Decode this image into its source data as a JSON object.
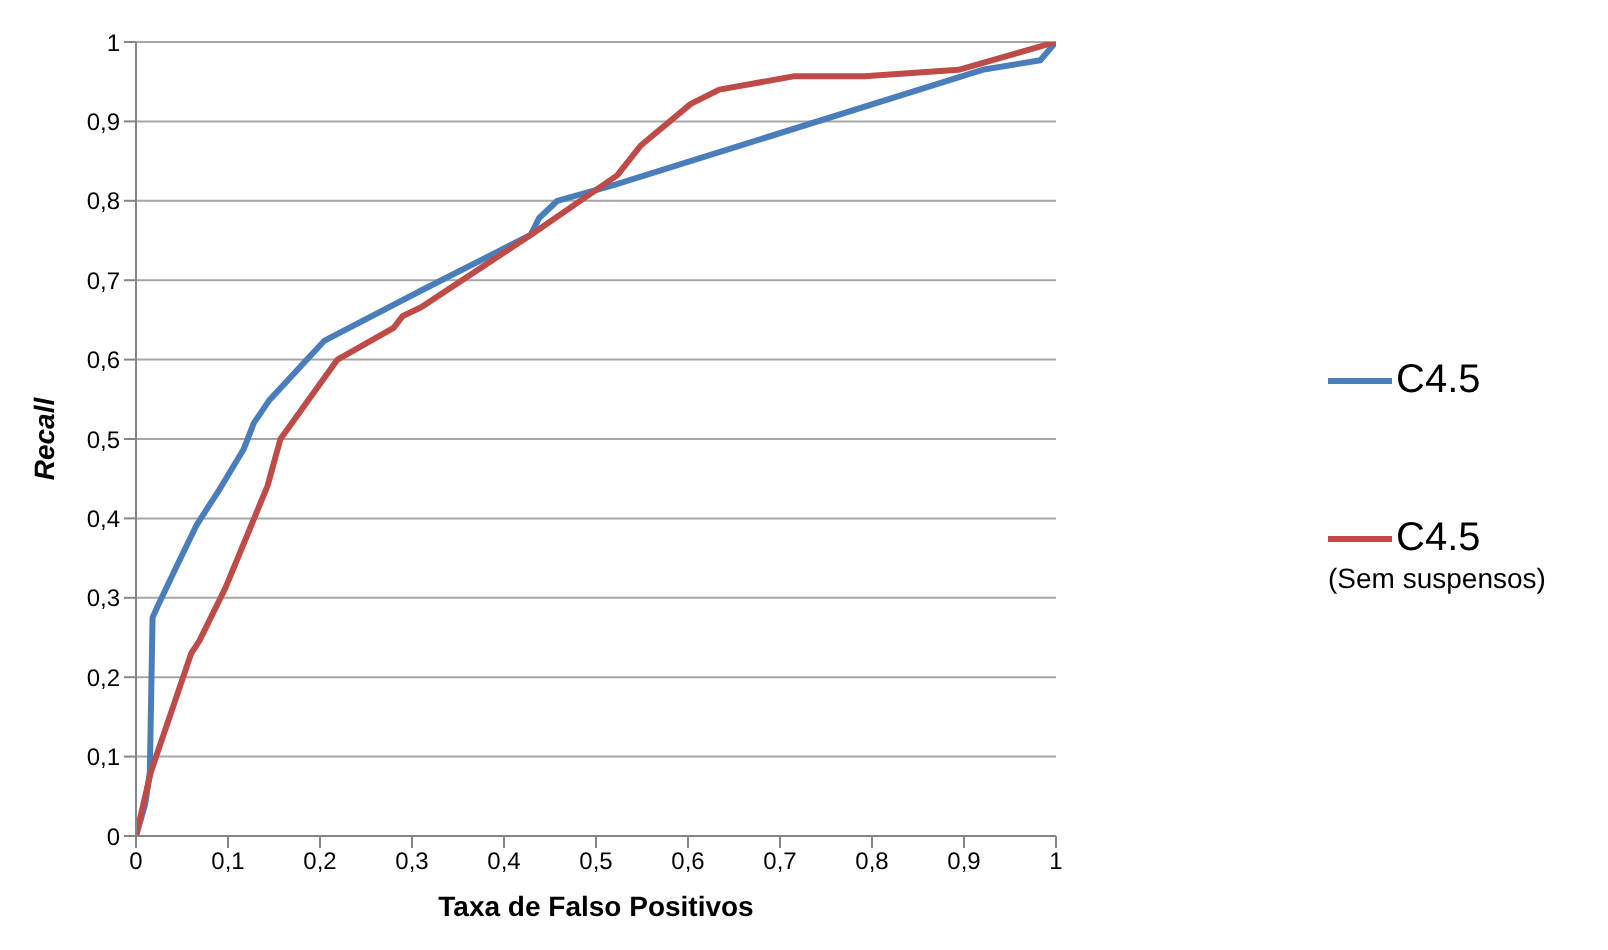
{
  "chart_data": {
    "type": "line",
    "xlabel": "Taxa de Falso Positivos",
    "ylabel": "Recall",
    "xlim": [
      0,
      1
    ],
    "ylim": [
      0,
      1
    ],
    "xticks": [
      0,
      {
        "value": 0.1,
        "label": "0,1"
      },
      {
        "value": 0.2,
        "label": "0,2"
      },
      {
        "value": 0.3,
        "label": "0,3"
      },
      {
        "value": 0.4,
        "label": "0,4"
      },
      {
        "value": 0.5,
        "label": "0,5"
      },
      {
        "value": 0.6,
        "label": "0,6"
      },
      {
        "value": 0.7,
        "label": "0,7"
      },
      {
        "value": 0.8,
        "label": "0,8"
      },
      {
        "value": 0.9,
        "label": "0,9"
      },
      1
    ],
    "yticks": [
      0,
      {
        "value": 0.1,
        "label": "0,1"
      },
      {
        "value": 0.2,
        "label": "0,2"
      },
      {
        "value": 0.3,
        "label": "0,3"
      },
      {
        "value": 0.4,
        "label": "0,4"
      },
      {
        "value": 0.5,
        "label": "0,5"
      },
      {
        "value": 0.6,
        "label": "0,6"
      },
      {
        "value": 0.7,
        "label": "0,7"
      },
      {
        "value": 0.8,
        "label": "0,8"
      },
      {
        "value": 0.9,
        "label": "0,9"
      },
      1
    ],
    "grid": "y",
    "legend": "right",
    "marker": "none",
    "line_style": "solid",
    "series": [
      {
        "name": "C4.5",
        "color": "#4a7ebb",
        "x": [
          0,
          0.01,
          0.015,
          0.018,
          0.023,
          0.043,
          0.066,
          0.091,
          0.117,
          0.128,
          0.145,
          0.205,
          0.31,
          0.429,
          0.438,
          0.458,
          0.52,
          0.92,
          0.983,
          1
        ],
        "values": [
          0,
          0.04,
          0.08,
          0.275,
          0.288,
          0.337,
          0.392,
          0.437,
          0.487,
          0.52,
          0.549,
          0.624,
          0.687,
          0.757,
          0.778,
          0.8,
          0.82,
          0.965,
          0.977,
          1
        ]
      },
      {
        "name": "C4.5 (Sem suspensos)",
        "color": "#be4b48",
        "x": [
          0,
          0.016,
          0.06,
          0.069,
          0.097,
          0.143,
          0.157,
          0.219,
          0.28,
          0.29,
          0.31,
          0.429,
          0.523,
          0.549,
          0.603,
          0.634,
          0.716,
          0.792,
          0.894,
          1
        ],
        "values": [
          0,
          0.08,
          0.23,
          0.246,
          0.312,
          0.441,
          0.5,
          0.6,
          0.64,
          0.655,
          0.666,
          0.757,
          0.832,
          0.87,
          0.922,
          0.94,
          0.957,
          0.957,
          0.965,
          1
        ]
      }
    ]
  }
}
